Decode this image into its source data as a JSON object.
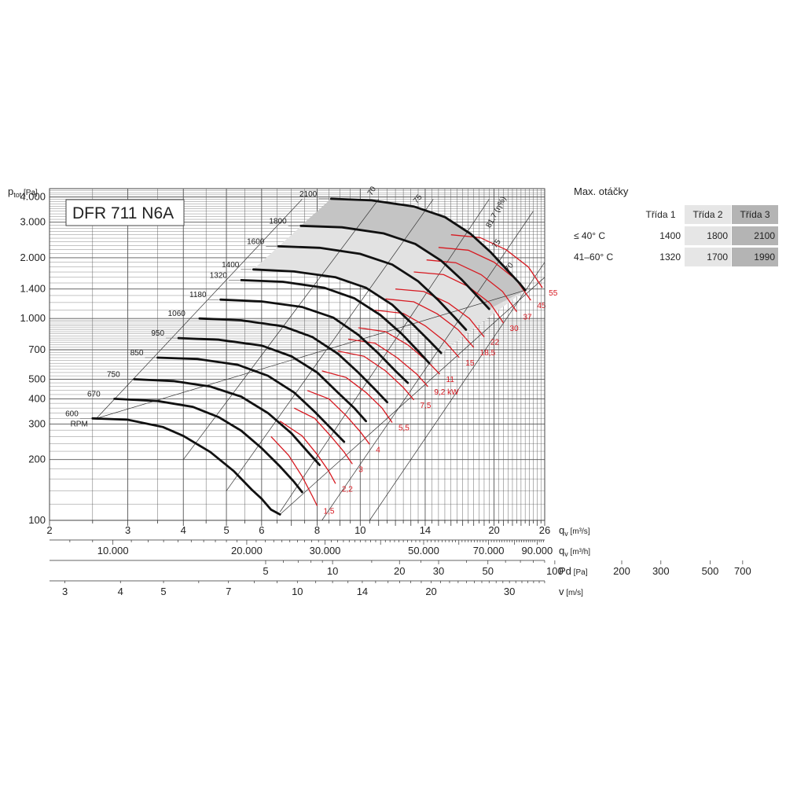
{
  "chart_data": {
    "type": "line",
    "title": "DFR 711 N6A",
    "y_axis": {
      "label": "p",
      "label_sub": "tot",
      "unit": "[Pa]",
      "scale": "log",
      "range": [
        100,
        4400
      ],
      "ticks": [
        "4.000",
        "3.000",
        "2.000",
        "1.400",
        "1.000",
        "700",
        "500",
        "400",
        "300",
        "200",
        "100"
      ]
    },
    "x_axes": [
      {
        "label": "q",
        "label_sub": "v",
        "unit": "[m³/s]",
        "scale": "log",
        "range": [
          2,
          26
        ],
        "ticks": [
          "2",
          "3",
          "4",
          "5",
          "6",
          "8",
          "10",
          "14",
          "20",
          "26"
        ]
      },
      {
        "label": "q",
        "label_sub": "v",
        "unit": "[m³/h]",
        "ticks": [
          "10.000",
          "20.000",
          "30.000",
          "50.000",
          "70.000",
          "90.000"
        ]
      },
      {
        "label": "Pd",
        "label_sub": "",
        "unit": "[Pa]",
        "ticks": [
          "5",
          "10",
          "20",
          "30",
          "50",
          "100",
          "200",
          "300",
          "500",
          "700"
        ]
      },
      {
        "label": "v",
        "label_sub": "",
        "unit": "[m/s]",
        "ticks": [
          "3",
          "4",
          "5",
          "7",
          "10",
          "14",
          "20",
          "30"
        ]
      }
    ],
    "rpm_unit": "RPM",
    "speed_curves": [
      {
        "rpm": "600",
        "points": [
          [
            2.5,
            320
          ],
          [
            3.0,
            315
          ],
          [
            3.6,
            290
          ],
          [
            4.0,
            262
          ],
          [
            4.6,
            218
          ],
          [
            5.2,
            175
          ],
          [
            5.7,
            142
          ],
          [
            6.0,
            128
          ],
          [
            6.3,
            113
          ],
          [
            6.6,
            107
          ]
        ]
      },
      {
        "rpm": "670",
        "points": [
          [
            2.8,
            400
          ],
          [
            3.5,
            390
          ],
          [
            4.2,
            365
          ],
          [
            4.8,
            325
          ],
          [
            5.4,
            278
          ],
          [
            6.0,
            228
          ],
          [
            6.6,
            185
          ],
          [
            7.1,
            155
          ],
          [
            7.4,
            138
          ]
        ]
      },
      {
        "rpm": "750",
        "points": [
          [
            3.1,
            500
          ],
          [
            3.8,
            490
          ],
          [
            4.6,
            460
          ],
          [
            5.4,
            410
          ],
          [
            6.2,
            340
          ],
          [
            7.0,
            270
          ],
          [
            7.6,
            220
          ],
          [
            8.1,
            188
          ]
        ]
      },
      {
        "rpm": "850",
        "points": [
          [
            3.5,
            640
          ],
          [
            4.3,
            630
          ],
          [
            5.3,
            590
          ],
          [
            6.2,
            520
          ],
          [
            7.1,
            430
          ],
          [
            7.9,
            345
          ],
          [
            8.6,
            285
          ],
          [
            9.2,
            245
          ]
        ]
      },
      {
        "rpm": "950",
        "points": [
          [
            3.9,
            800
          ],
          [
            4.8,
            785
          ],
          [
            6.0,
            735
          ],
          [
            7.0,
            650
          ],
          [
            8.0,
            540
          ],
          [
            8.9,
            430
          ],
          [
            9.7,
            360
          ],
          [
            10.3,
            310
          ]
        ]
      },
      {
        "rpm": "1060",
        "points": [
          [
            4.35,
            1000
          ],
          [
            5.4,
            980
          ],
          [
            6.7,
            915
          ],
          [
            7.8,
            810
          ],
          [
            8.9,
            670
          ],
          [
            9.9,
            540
          ],
          [
            10.8,
            445
          ],
          [
            11.5,
            385
          ]
        ]
      },
      {
        "rpm": "1180",
        "points": [
          [
            4.85,
            1240
          ],
          [
            6.0,
            1215
          ],
          [
            7.4,
            1140
          ],
          [
            8.7,
            1010
          ],
          [
            9.9,
            830
          ],
          [
            11.0,
            670
          ],
          [
            12.0,
            550
          ],
          [
            12.8,
            480
          ]
        ]
      },
      {
        "rpm": "1320",
        "points": [
          [
            5.4,
            1550
          ],
          [
            6.7,
            1520
          ],
          [
            8.3,
            1420
          ],
          [
            9.7,
            1260
          ],
          [
            11.1,
            1040
          ],
          [
            12.4,
            840
          ],
          [
            13.5,
            690
          ],
          [
            14.3,
            600
          ]
        ]
      },
      {
        "rpm": "1400",
        "points": [
          [
            5.75,
            1750
          ],
          [
            7.1,
            1710
          ],
          [
            8.8,
            1600
          ],
          [
            10.3,
            1420
          ],
          [
            11.8,
            1170
          ],
          [
            13.1,
            940
          ],
          [
            14.3,
            775
          ],
          [
            15.2,
            675
          ]
        ]
      },
      {
        "rpm": "1600",
        "points": [
          [
            6.55,
            2280
          ],
          [
            8.1,
            2240
          ],
          [
            10.0,
            2090
          ],
          [
            11.8,
            1850
          ],
          [
            13.5,
            1530
          ],
          [
            15.0,
            1230
          ],
          [
            16.3,
            1015
          ],
          [
            17.3,
            880
          ]
        ]
      },
      {
        "rpm": "1800",
        "points": [
          [
            7.35,
            2880
          ],
          [
            9.1,
            2830
          ],
          [
            11.3,
            2640
          ],
          [
            13.3,
            2340
          ],
          [
            15.2,
            1935
          ],
          [
            16.9,
            1560
          ],
          [
            18.4,
            1280
          ],
          [
            19.5,
            1115
          ]
        ]
      },
      {
        "rpm": "2100",
        "points": [
          [
            8.6,
            3920
          ],
          [
            10.6,
            3850
          ],
          [
            13.2,
            3590
          ],
          [
            15.5,
            3180
          ],
          [
            17.7,
            2630
          ],
          [
            19.7,
            2120
          ],
          [
            21.4,
            1740
          ],
          [
            22.8,
            1500
          ],
          [
            23.5,
            1380
          ]
        ]
      }
    ],
    "power_curves": [
      {
        "label": "1,5",
        "points": [
          [
            6.3,
            260
          ],
          [
            6.9,
            210
          ],
          [
            7.4,
            165
          ],
          [
            7.8,
            132
          ],
          [
            8.0,
            118
          ]
        ]
      },
      {
        "label": "2,2",
        "points": [
          [
            6.6,
            310
          ],
          [
            7.4,
            262
          ],
          [
            8.0,
            212
          ],
          [
            8.5,
            175
          ],
          [
            8.8,
            152
          ]
        ]
      },
      {
        "label": "3",
        "points": [
          [
            7.1,
            360
          ],
          [
            7.9,
            320
          ],
          [
            8.6,
            260
          ],
          [
            9.2,
            218
          ],
          [
            9.6,
            190
          ]
        ]
      },
      {
        "label": "4",
        "points": [
          [
            7.6,
            440
          ],
          [
            8.5,
            400
          ],
          [
            9.3,
            330
          ],
          [
            10.0,
            275
          ],
          [
            10.5,
            238
          ]
        ]
      },
      {
        "label": "5,5",
        "points": [
          [
            8.2,
            550
          ],
          [
            9.3,
            510
          ],
          [
            10.3,
            430
          ],
          [
            11.2,
            360
          ],
          [
            11.8,
            305
          ]
        ]
      },
      {
        "label": "7,5",
        "points": [
          [
            8.9,
            690
          ],
          [
            10.2,
            650
          ],
          [
            11.4,
            550
          ],
          [
            12.5,
            455
          ],
          [
            13.2,
            395
          ]
        ]
      },
      {
        "label": "9,2 kW",
        "points": [
          [
            9.4,
            790
          ],
          [
            10.8,
            755
          ],
          [
            12.1,
            640
          ],
          [
            13.4,
            530
          ],
          [
            14.2,
            460
          ]
        ]
      },
      {
        "label": "11",
        "points": [
          [
            9.9,
            900
          ],
          [
            11.4,
            860
          ],
          [
            12.8,
            740
          ],
          [
            14.2,
            610
          ],
          [
            15.1,
            530
          ]
        ]
      },
      {
        "label": "15",
        "points": [
          [
            10.8,
            1100
          ],
          [
            12.5,
            1060
          ],
          [
            14.0,
            920
          ],
          [
            15.5,
            770
          ],
          [
            16.7,
            640
          ]
        ]
      },
      {
        "label": "18,5",
        "points": [
          [
            11.4,
            1250
          ],
          [
            13.2,
            1210
          ],
          [
            14.9,
            1055
          ],
          [
            16.6,
            880
          ],
          [
            18.0,
            720
          ]
        ]
      },
      {
        "label": "22",
        "points": [
          [
            12.0,
            1400
          ],
          [
            13.9,
            1360
          ],
          [
            15.8,
            1190
          ],
          [
            17.6,
            1000
          ],
          [
            19.0,
            810
          ]
        ]
      },
      {
        "label": "30",
        "points": [
          [
            13.2,
            1700
          ],
          [
            15.4,
            1650
          ],
          [
            17.5,
            1440
          ],
          [
            19.6,
            1190
          ],
          [
            21.0,
            950
          ]
        ]
      },
      {
        "label": "37",
        "points": [
          [
            14.1,
            1950
          ],
          [
            16.4,
            1890
          ],
          [
            18.7,
            1650
          ],
          [
            20.9,
            1360
          ],
          [
            22.5,
            1080
          ]
        ]
      },
      {
        "label": "45",
        "points": [
          [
            15.0,
            2250
          ],
          [
            17.5,
            2180
          ],
          [
            20.0,
            1900
          ],
          [
            22.4,
            1560
          ],
          [
            24.2,
            1230
          ]
        ]
      },
      {
        "label": "55",
        "points": [
          [
            16.0,
            2600
          ],
          [
            18.6,
            2520
          ],
          [
            21.3,
            2190
          ],
          [
            23.9,
            1800
          ],
          [
            25.7,
            1420
          ]
        ]
      }
    ],
    "efficiency_labels": [
      "70",
      "75",
      "81,7 (η%)",
      "75",
      "70"
    ]
  },
  "speed_table": {
    "title": "Max. otáčky",
    "headers": [
      "Třída 1",
      "Třída 2",
      "Třída 3"
    ],
    "rows": [
      {
        "label": "≤ 40° C",
        "values": [
          "1400",
          "1800",
          "2100"
        ]
      },
      {
        "label": "41–60° C",
        "values": [
          "1320",
          "1700",
          "1990"
        ]
      }
    ]
  },
  "colors": {
    "speed_curve": "#111111",
    "power_curve": "#d71920",
    "grid": "#555555",
    "shade_light": "#e2e2e2",
    "shade_dark": "#c4c4c4"
  }
}
